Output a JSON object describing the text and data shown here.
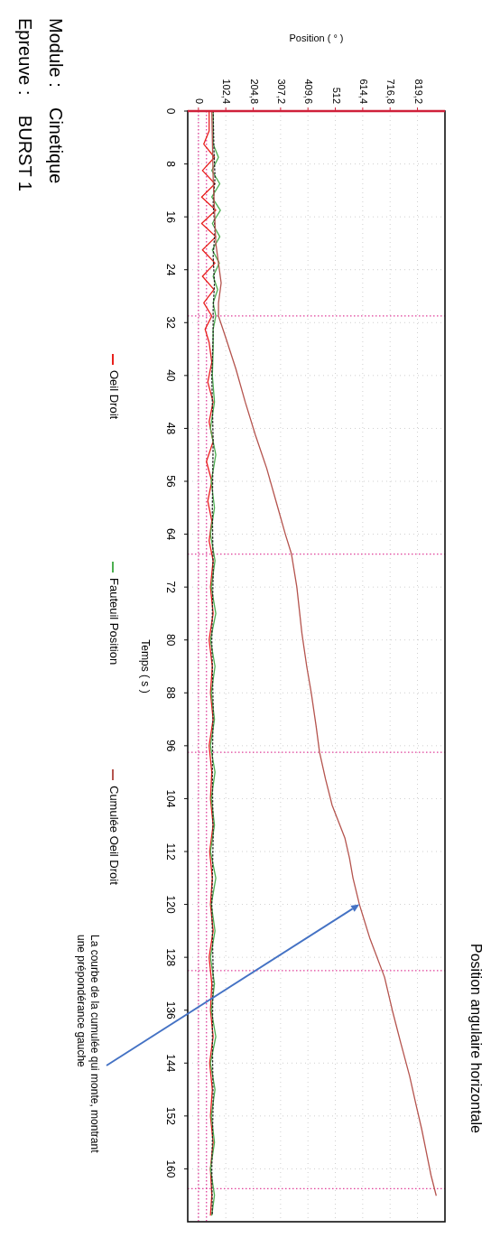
{
  "chart_data": {
    "type": "line",
    "title": "Position angulaire horizontale",
    "xlabel": "Position ( ° )",
    "ylabel": "Temps ( s )",
    "xlim": [
      -40,
      922
    ],
    "xticks": [
      0,
      {
        "value": 102.4,
        "label": "102,4"
      },
      {
        "value": 204.8,
        "label": "204,8"
      },
      {
        "value": 307.2,
        "label": "307,2"
      },
      {
        "value": 409.6,
        "label": "409,6"
      },
      512,
      {
        "value": 614.4,
        "label": "614,4"
      },
      {
        "value": 716.8,
        "label": "716,8"
      },
      {
        "value": 819.2,
        "label": "819,2"
      }
    ],
    "ylim": [
      168,
      0
    ],
    "yticks": [
      0,
      8,
      16,
      24,
      32,
      40,
      48,
      56,
      64,
      72,
      80,
      88,
      96,
      104,
      112,
      120,
      128,
      136,
      144,
      152,
      160
    ],
    "grid": true,
    "legend": "left",
    "marker": "none",
    "series": [
      {
        "name": "Oeil Droit",
        "color": "#e8201c",
        "values": [
          0,
          3,
          5,
          7,
          9,
          11,
          13,
          15,
          17,
          19,
          21,
          23,
          25,
          27,
          29,
          31,
          33,
          35,
          38,
          41,
          44,
          47,
          50,
          53,
          56,
          59,
          62,
          65,
          68,
          72,
          76,
          80,
          84,
          88,
          92,
          96,
          100,
          104,
          108,
          112,
          116,
          120,
          124,
          128,
          132,
          136,
          140,
          144,
          148,
          152,
          156,
          160,
          164,
          167
        ],
        "x": [
          40,
          40,
          20,
          60,
          15,
          62,
          12,
          65,
          12,
          65,
          15,
          62,
          15,
          58,
          20,
          50,
          25,
          40,
          50,
          35,
          55,
          40,
          55,
          30,
          50,
          35,
          50,
          40,
          55,
          45,
          55,
          40,
          52,
          45,
          55,
          40,
          50,
          45,
          55,
          42,
          52,
          45,
          55,
          40,
          50,
          45,
          55,
          42,
          52,
          45,
          55,
          45,
          50,
          45
        ]
      },
      {
        "name": "Fauteuil Position",
        "color": "#4caf50",
        "values": [
          0,
          5,
          7,
          9,
          11,
          13,
          15,
          17,
          19,
          21,
          23,
          25,
          27,
          29,
          31,
          33,
          36,
          40,
          44,
          48,
          52,
          56,
          60,
          64,
          68,
          72,
          76,
          80,
          84,
          88,
          92,
          96,
          100,
          104,
          108,
          112,
          116,
          120,
          124,
          128,
          132,
          136,
          140,
          144,
          148,
          152,
          156,
          160,
          164,
          167
        ],
        "x": [
          55,
          55,
          75,
          50,
          80,
          50,
          82,
          52,
          80,
          52,
          78,
          55,
          72,
          55,
          65,
          55,
          55,
          52,
          60,
          45,
          65,
          48,
          60,
          45,
          62,
          48,
          65,
          45,
          62,
          48,
          60,
          45,
          62,
          48,
          60,
          45,
          65,
          48,
          62,
          45,
          60,
          48,
          65,
          45,
          62,
          48,
          60,
          45,
          60,
          50
        ]
      },
      {
        "color": "#222222",
        "line_style": "dotted",
        "values": [
          0,
          6,
          10,
          14,
          18,
          22,
          26,
          30,
          34,
          40,
          50,
          60,
          70,
          80,
          90,
          100,
          110,
          120,
          130,
          140,
          150,
          160,
          167
        ],
        "x": [
          55,
          58,
          62,
          55,
          62,
          55,
          60,
          55,
          55,
          50,
          55,
          52,
          55,
          50,
          55,
          52,
          55,
          50,
          55,
          52,
          55,
          50,
          52
        ]
      },
      {
        "name": "Cumulée Oeil Droit",
        "color": "#b5544e",
        "values": [
          0,
          10,
          20,
          26,
          29,
          31,
          34,
          39,
          44,
          49,
          54,
          60,
          64,
          67,
          72,
          79,
          84,
          88,
          93,
          97,
          101,
          105,
          110,
          113,
          116,
          120,
          125,
          131,
          136,
          141,
          146,
          150,
          154,
          158,
          161,
          164
        ],
        "x": [
          50,
          55,
          65,
          85,
          75,
          75,
          100,
          140,
          175,
          213,
          255,
          297,
          325,
          348,
          368,
          387,
          405,
          422,
          440,
          453,
          475,
          500,
          548,
          565,
          578,
          602,
          640,
          696,
          725,
          757,
          790,
          812,
          835,
          855,
          870,
          889
        ]
      }
    ],
    "ref_lines": [
      {
        "axis": "y",
        "value": 31,
        "color": "#e0409a",
        "line_style": "dotted"
      },
      {
        "axis": "y",
        "value": 67,
        "color": "#e0409a",
        "line_style": "dotted"
      },
      {
        "axis": "y",
        "value": 97,
        "color": "#e0409a",
        "line_style": "dotted"
      },
      {
        "axis": "y",
        "value": 130,
        "color": "#e0409a",
        "line_style": "dotted"
      },
      {
        "axis": "y",
        "value": 163,
        "color": "#e0409a",
        "line_style": "dotted"
      },
      {
        "axis": "x",
        "value": 0,
        "color": "#e0409a",
        "line_style": "dotted"
      },
      {
        "axis": "x",
        "value": 30,
        "color": "#e0409a",
        "line_style": "dotted"
      }
    ],
    "annotations": [
      "Module :   Cinetique",
      "Epreuve :   BURST 1",
      {
        "text": "La courbe de la cumulée qui monte, montrant\nune prépondérance gauche",
        "x": 602,
        "y": 120
      }
    ]
  }
}
